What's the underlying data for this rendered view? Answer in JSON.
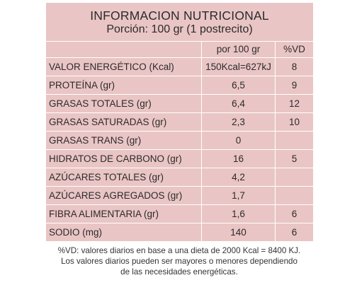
{
  "title": "INFORMACION NUTRICIONAL",
  "serving": "Porción: 100 gr (1 postrecito)",
  "columns": {
    "name": "",
    "per_100g": "por 100 gr",
    "vd": "%VD"
  },
  "rows": [
    {
      "name": "VALOR ENERGÉTICO  (Kcal)",
      "value": "150Kcal=627kJ",
      "vd": "8"
    },
    {
      "name": "PROTEÍNA (gr)",
      "value": "6,5",
      "vd": "9"
    },
    {
      "name": "GRASAS TOTALES (gr)",
      "value": "6,4",
      "vd": "12"
    },
    {
      "name": "GRASAS SATURADAS (gr)",
      "value": "2,3",
      "vd": "10"
    },
    {
      "name": "GRASAS TRANS (gr)",
      "value": "0",
      "vd": ""
    },
    {
      "name": "HIDRATOS DE CARBONO (gr)",
      "value": "16",
      "vd": "5"
    },
    {
      "name": "AZÚCARES TOTALES (gr)",
      "value": "4,2",
      "vd": ""
    },
    {
      "name": "AZÚCARES AGREGADOS (gr)",
      "value": "1,7",
      "vd": ""
    },
    {
      "name": "FIBRA ALIMENTARIA (gr)",
      "value": "1,6",
      "vd": "6"
    },
    {
      "name": "SODIO (mg)",
      "value": "140",
      "vd": "6"
    }
  ],
  "footnote": [
    "%VD:  valores diarios en base a una dieta de 2000 Kcal = 8400 KJ.",
    "Los valores diarios pueden ser mayores o menores dependiendo",
    "de las necesidades energéticas."
  ],
  "colors": {
    "table_bg": "#eac5c5",
    "border": "#ffffff",
    "text": "#2b2b2b"
  }
}
